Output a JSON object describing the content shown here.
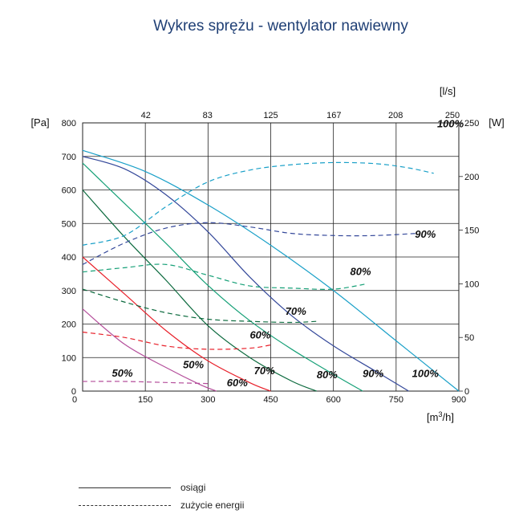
{
  "title": "Wykres sprężu - wentylator nawiewny",
  "legend": [
    {
      "label": "osiągi",
      "style": "solid"
    },
    {
      "label": "zużycie energii",
      "style": "dashed"
    }
  ],
  "chart_data": {
    "type": "line",
    "title": "Wykres sprężu - wentylator nawiewny",
    "xlabel": "[m3/h]",
    "ylabel": "[Pa]",
    "x2label": "[l/s]",
    "y2label": "[W]",
    "xlim": [
      0,
      900
    ],
    "ylim": [
      0,
      800
    ],
    "y2lim": [
      0,
      250
    ],
    "x2lim": [
      0,
      250
    ],
    "xticks": [
      "0",
      "150",
      "300",
      "450",
      "600",
      "750",
      "900"
    ],
    "yticks": [
      "0",
      "100",
      "200",
      "300",
      "400",
      "500",
      "600",
      "700",
      "800"
    ],
    "x2ticks": [
      "42",
      "83",
      "125",
      "167",
      "208",
      "250"
    ],
    "y2ticks": [
      "0",
      "50",
      "100",
      "150",
      "200",
      "250"
    ],
    "grid": true,
    "series": [
      {
        "name": "100%",
        "kind": "osiągi",
        "color": "#1aa0c8",
        "points": [
          [
            0,
            718
          ],
          [
            150,
            655
          ],
          [
            300,
            555
          ],
          [
            450,
            435
          ],
          [
            600,
            300
          ],
          [
            750,
            150
          ],
          [
            900,
            0
          ]
        ]
      },
      {
        "name": "90%",
        "kind": "osiągi",
        "color": "#34489a",
        "points": [
          [
            0,
            700
          ],
          [
            100,
            663
          ],
          [
            200,
            585
          ],
          [
            300,
            475
          ],
          [
            400,
            340
          ],
          [
            500,
            225
          ],
          [
            600,
            135
          ],
          [
            700,
            60
          ],
          [
            780,
            0
          ]
        ]
      },
      {
        "name": "80%",
        "kind": "osiągi",
        "color": "#16a077",
        "points": [
          [
            0,
            680
          ],
          [
            100,
            560
          ],
          [
            200,
            440
          ],
          [
            300,
            315
          ],
          [
            400,
            210
          ],
          [
            500,
            125
          ],
          [
            600,
            50
          ],
          [
            670,
            0
          ]
        ]
      },
      {
        "name": "70%",
        "kind": "osiągi",
        "color": "#0c6a3e",
        "points": [
          [
            0,
            600
          ],
          [
            100,
            460
          ],
          [
            200,
            330
          ],
          [
            300,
            195
          ],
          [
            400,
            100
          ],
          [
            500,
            30
          ],
          [
            560,
            0
          ]
        ]
      },
      {
        "name": "60%",
        "kind": "osiągi",
        "color": "#e8202a",
        "points": [
          [
            0,
            400
          ],
          [
            100,
            290
          ],
          [
            200,
            180
          ],
          [
            300,
            90
          ],
          [
            400,
            25
          ],
          [
            450,
            0
          ]
        ]
      },
      {
        "name": "50%",
        "kind": "osiągi",
        "color": "#b44e9b",
        "points": [
          [
            0,
            245
          ],
          [
            100,
            140
          ],
          [
            200,
            70
          ],
          [
            280,
            20
          ],
          [
            320,
            0
          ]
        ]
      },
      {
        "name": "100%",
        "kind": "zużycie energii",
        "color": "#1aa0c8",
        "points": [
          [
            0,
            136
          ],
          [
            100,
            145
          ],
          [
            200,
            172
          ],
          [
            300,
            195
          ],
          [
            400,
            206
          ],
          [
            500,
            211
          ],
          [
            600,
            213
          ],
          [
            700,
            212
          ],
          [
            780,
            208
          ],
          [
            840,
            203
          ]
        ]
      },
      {
        "name": "90%",
        "kind": "zużycie energii",
        "color": "#34489a",
        "points": [
          [
            0,
            118
          ],
          [
            100,
            138
          ],
          [
            200,
            152
          ],
          [
            300,
            157
          ],
          [
            400,
            153
          ],
          [
            500,
            147
          ],
          [
            600,
            145
          ],
          [
            700,
            145
          ],
          [
            800,
            147
          ]
        ]
      },
      {
        "name": "80%",
        "kind": "zużycie energii",
        "color": "#16a077",
        "points": [
          [
            0,
            111
          ],
          [
            100,
            115
          ],
          [
            200,
            118
          ],
          [
            300,
            108
          ],
          [
            400,
            98
          ],
          [
            500,
            96
          ],
          [
            600,
            95
          ],
          [
            680,
            100
          ]
        ]
      },
      {
        "name": "70%",
        "kind": "zużycie energii",
        "color": "#0c6a3e",
        "points": [
          [
            0,
            95
          ],
          [
            100,
            83
          ],
          [
            200,
            73
          ],
          [
            300,
            67
          ],
          [
            400,
            65
          ],
          [
            500,
            64
          ],
          [
            560,
            65
          ]
        ]
      },
      {
        "name": "60%",
        "kind": "zużycie energii",
        "color": "#e8202a",
        "points": [
          [
            0,
            55
          ],
          [
            100,
            50
          ],
          [
            200,
            42
          ],
          [
            300,
            39
          ],
          [
            400,
            40
          ],
          [
            450,
            43
          ]
        ]
      },
      {
        "name": "50%",
        "kind": "zużycie energii",
        "color": "#b44e9b",
        "points": [
          [
            0,
            9
          ],
          [
            100,
            9
          ],
          [
            200,
            8
          ],
          [
            300,
            7
          ]
        ]
      }
    ],
    "labels": [
      {
        "text": "100%",
        "x": 880,
        "y": 246,
        "axis": "y2"
      },
      {
        "text": "90%",
        "x": 820,
        "y": 143,
        "axis": "y2"
      },
      {
        "text": "80%",
        "x": 665,
        "y": 108,
        "axis": "y2"
      },
      {
        "text": "70%",
        "x": 510,
        "y": 71,
        "axis": "y2"
      },
      {
        "text": "60%",
        "x": 425,
        "y": 49,
        "axis": "y2"
      },
      {
        "text": "50%",
        "x": 95,
        "y": 43
      },
      {
        "text": "50%",
        "x": 265,
        "y": 68
      },
      {
        "text": "60%",
        "x": 370,
        "y": 14
      },
      {
        "text": "70%",
        "x": 435,
        "y": 50
      },
      {
        "text": "80%",
        "x": 585,
        "y": 38
      },
      {
        "text": "90%",
        "x": 695,
        "y": 42
      },
      {
        "text": "100%",
        "x": 820,
        "y": 42
      }
    ]
  }
}
